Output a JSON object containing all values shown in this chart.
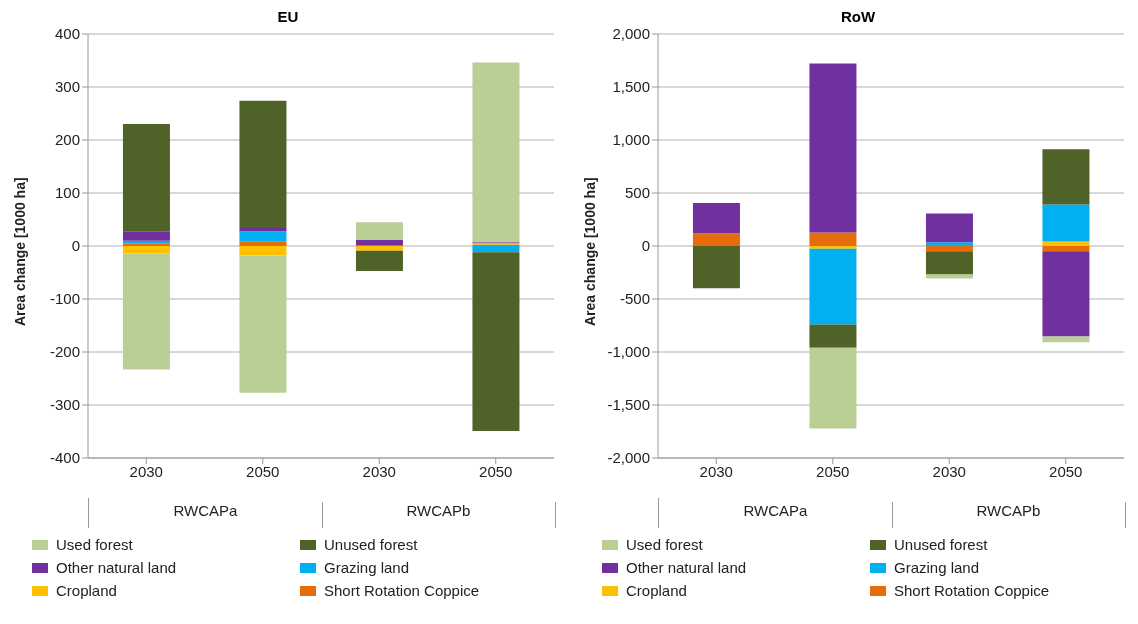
{
  "chart_data": [
    {
      "type": "bar",
      "title": "EU",
      "ylabel": "Area change [1000 ha]",
      "categories": [
        "2030",
        "2050",
        "2030",
        "2050"
      ],
      "annotations": [
        "RWCAPa",
        "RWCAPb"
      ],
      "stacked": true,
      "grid": "y",
      "legend": "bottom",
      "ylim": [
        -400,
        400
      ],
      "yticks": [
        -400,
        -300,
        -200,
        -100,
        0,
        100,
        200,
        300,
        400
      ],
      "series": [
        {
          "name": "Short Rotation Coppice",
          "color": "#e46c0a",
          "values": [
            5,
            9,
            0,
            3
          ]
        },
        {
          "name": "Cropland",
          "color": "#ffc000",
          "values": [
            -14,
            -18,
            -9,
            2
          ]
        },
        {
          "name": "Grazing land",
          "color": "#00b0f0",
          "values": [
            5,
            19,
            1,
            -12
          ]
        },
        {
          "name": "Other natural land",
          "color": "#7030a0",
          "values": [
            18,
            6,
            11,
            2
          ]
        },
        {
          "name": "Unused forest",
          "color": "#4f6228",
          "values": [
            202,
            240,
            -38,
            -337
          ]
        },
        {
          "name": "Used forest",
          "color": "#b9cf96",
          "values": [
            -219,
            -259,
            33,
            339
          ]
        }
      ]
    },
    {
      "type": "bar",
      "title": "RoW",
      "ylabel": "Area change [1000 ha]",
      "categories": [
        "2030",
        "2050",
        "2030",
        "2050"
      ],
      "annotations": [
        "RWCAPa",
        "RWCAPb"
      ],
      "stacked": true,
      "grid": "y",
      "legend": "bottom",
      "ylim": [
        -2000,
        2000
      ],
      "yticks": [
        {
          "value": -2000,
          "label": "-2,000"
        },
        {
          "value": -1500,
          "label": "-1,500"
        },
        {
          "value": -1000,
          "label": "-1,000"
        },
        -500,
        0,
        500,
        {
          "value": 1000,
          "label": "1,000"
        },
        {
          "value": 1500,
          "label": "1,500"
        },
        {
          "value": 2000,
          "label": "2,000"
        }
      ],
      "series": [
        {
          "name": "Short Rotation Coppice",
          "color": "#e46c0a",
          "values": [
            120,
            127,
            -49,
            -49
          ]
        },
        {
          "name": "Cropland",
          "color": "#ffc000",
          "values": [
            0,
            -25,
            0,
            42
          ]
        },
        {
          "name": "Grazing land",
          "color": "#00b0f0",
          "values": [
            0,
            -716,
            35,
            349
          ]
        },
        {
          "name": "Other natural land",
          "color": "#7030a0",
          "values": [
            286,
            1594,
            272,
            -804
          ]
        },
        {
          "name": "Unused forest",
          "color": "#4f6228",
          "values": [
            -399,
            -219,
            -219,
            522
          ]
        },
        {
          "name": "Used forest",
          "color": "#b9cf96",
          "values": [
            0,
            -762,
            -39,
            -56
          ]
        }
      ]
    }
  ]
}
